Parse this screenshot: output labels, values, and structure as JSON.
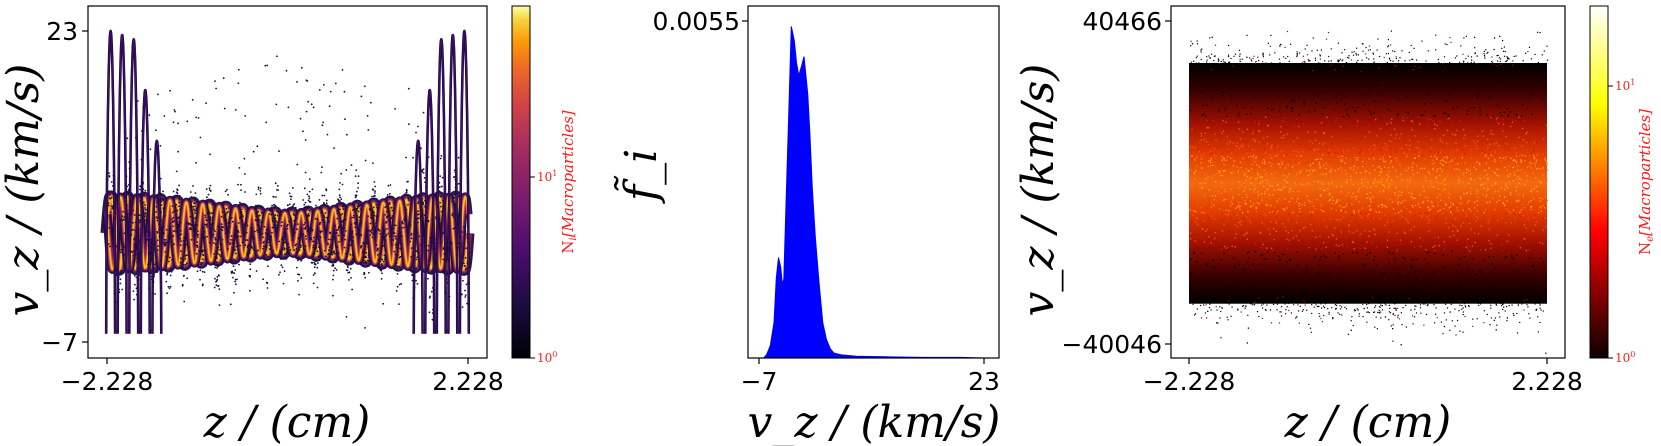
{
  "chart_data": [
    {
      "type": "heatmap",
      "title": "",
      "xlabel": "z / (cm)",
      "ylabel": "v_z / (km/s)",
      "xlim": [
        -2.228,
        2.228
      ],
      "ylim": [
        -7,
        23
      ],
      "x_ticks": [
        "−2.228",
        "2.228"
      ],
      "y_ticks": [
        "23",
        "−7"
      ],
      "colormap": "inferno",
      "colorbar": {
        "label": "N_i [Macroparticles]",
        "label_main": "N",
        "label_sub": "i",
        "label_rest": "[Macroparticles]",
        "ticks": [
          {
            "base": "10",
            "exp": "0"
          },
          {
            "base": "10",
            "exp": "1"
          }
        ],
        "range": [
          1,
          40
        ],
        "log": true,
        "color": "#ff1a1a"
      },
      "structure": {
        "core_mean_v": 3.5,
        "core_oscillation_amplitude_v": 3.5,
        "core_wavelengths": 22,
        "edge_jets_max_v": 23,
        "edge_jet_count_each_side": 5
      }
    },
    {
      "type": "area",
      "title": "",
      "xlabel": "v_z / (km/s)",
      "ylabel": "f̃_i",
      "xlim": [
        -7,
        23
      ],
      "ylim": [
        0,
        0.0055
      ],
      "x_ticks": [
        "−7",
        "23"
      ],
      "y_ticks": [
        "0.0055"
      ],
      "color": "#0000ff",
      "x": [
        -7.0,
        -6.4,
        -6.0,
        -5.5,
        -5.0,
        -4.7,
        -4.4,
        -4.1,
        -3.9,
        -3.7,
        -3.4,
        -3.0,
        -2.7,
        -2.3,
        -2.0,
        -1.7,
        -1.3,
        -1.0,
        -0.8,
        -0.5,
        -0.2,
        0.1,
        0.5,
        1.0,
        1.5,
        2.0,
        2.5,
        3.0,
        4.0,
        6.0,
        10.0,
        15.0,
        20.0,
        23.0
      ],
      "values": [
        0.0,
        0.0,
        5e-05,
        0.0002,
        0.0006,
        0.0013,
        0.0016,
        0.0015,
        0.0012,
        0.0013,
        0.0025,
        0.0041,
        0.0054,
        0.0052,
        0.0048,
        0.0046,
        0.0048,
        0.0049,
        0.0047,
        0.0043,
        0.0036,
        0.0028,
        0.002,
        0.0012,
        0.0006,
        0.0003,
        0.00015,
        8e-05,
        5e-05,
        3e-05,
        2e-05,
        1e-05,
        1e-05,
        0.0
      ]
    },
    {
      "type": "heatmap",
      "title": "",
      "xlabel": "z / (cm)",
      "ylabel": "v_z / (km/s)",
      "xlim": [
        -2.228,
        2.228
      ],
      "ylim": [
        -40046,
        40466
      ],
      "x_ticks": [
        "−2.228",
        "2.228"
      ],
      "y_ticks": [
        "40466",
        "−40046"
      ],
      "colormap": "hot",
      "colorbar": {
        "label": "N_e [Macroparticles]",
        "label_main": "N",
        "label_sub": "e",
        "label_rest": "[Macroparticles]",
        "ticks": [
          {
            "base": "10",
            "exp": "0"
          },
          {
            "base": "10",
            "exp": "1"
          }
        ],
        "range": [
          1,
          20
        ],
        "log": true,
        "color": "#ff1a1a"
      },
      "structure": {
        "distribution": "thermal (Maxwellian)",
        "thermal_spread_v": 12000,
        "dense_extent_v": [
          -30000,
          30000
        ]
      }
    }
  ]
}
